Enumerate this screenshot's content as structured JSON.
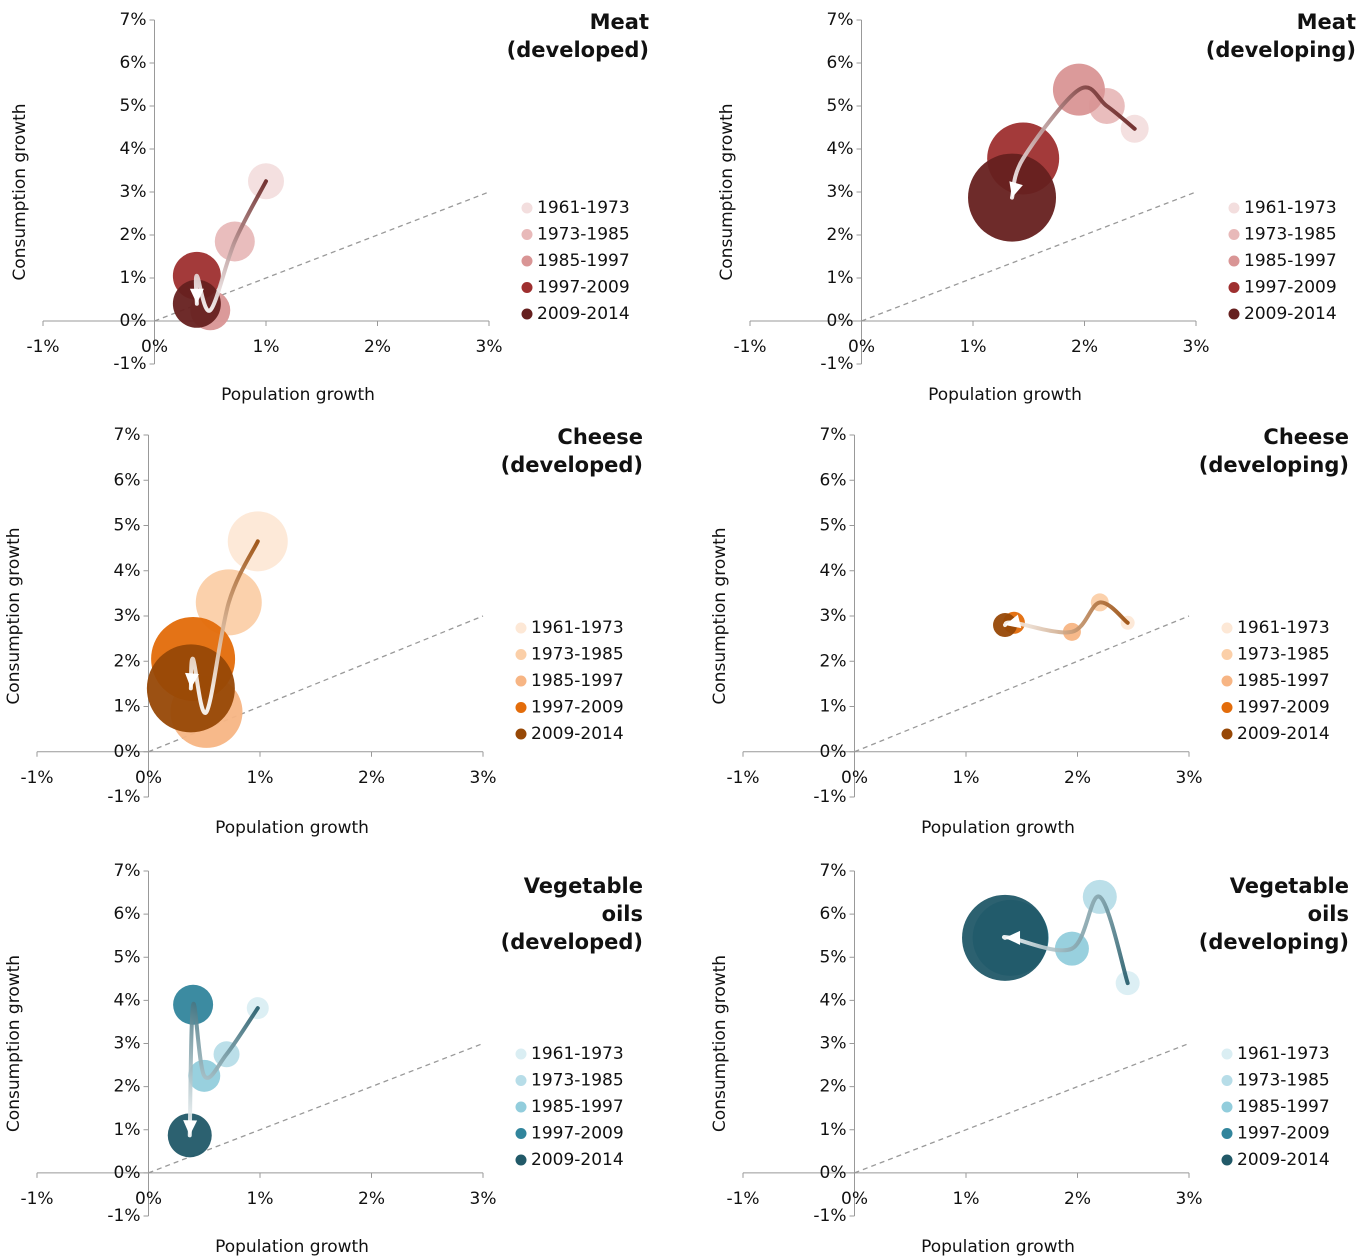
{
  "chart_data": [
    {
      "type": "bubble",
      "title": [
        "Meat",
        "(developed)"
      ],
      "xlabel": "Population growth",
      "ylabel": "Consumption growth",
      "xlim": [
        -1,
        3
      ],
      "ylim": [
        -1,
        7
      ],
      "xticks": [
        {
          "value": -1,
          "label": "-1%"
        },
        {
          "value": 0,
          "label": "0%"
        },
        {
          "value": 1,
          "label": "1%"
        },
        {
          "value": 2,
          "label": "2%"
        },
        {
          "value": 3,
          "label": "3%"
        }
      ],
      "yticks": [
        {
          "value": -1,
          "label": "-1%"
        },
        {
          "value": 0,
          "label": "0%"
        },
        {
          "value": 1,
          "label": "1%"
        },
        {
          "value": 2,
          "label": "2%"
        },
        {
          "value": 3,
          "label": "3%"
        },
        {
          "value": 4,
          "label": "4%"
        },
        {
          "value": 5,
          "label": "5%"
        },
        {
          "value": 6,
          "label": "6%"
        },
        {
          "value": 7,
          "label": "7%"
        }
      ],
      "series": [
        {
          "name": "1961-1973",
          "color": "#f3dede",
          "x": [
            1.0
          ],
          "values": [
            3.25
          ],
          "sizes": [
            18
          ]
        },
        {
          "name": "1973-1985",
          "color": "#e8b9b9",
          "x": [
            0.72
          ],
          "values": [
            1.85
          ],
          "sizes": [
            20
          ]
        },
        {
          "name": "1985-1997",
          "color": "#d99595",
          "x": [
            0.5
          ],
          "values": [
            0.25
          ],
          "sizes": [
            20
          ]
        },
        {
          "name": "1997-2009",
          "color": "#9e2f2f",
          "x": [
            0.38
          ],
          "values": [
            1.05
          ],
          "sizes": [
            24
          ]
        },
        {
          "name": "2009-2014",
          "color": "#66201f",
          "x": [
            0.38
          ],
          "values": [
            0.4
          ],
          "sizes": [
            24
          ]
        }
      ]
    },
    {
      "type": "bubble",
      "title": [
        "Meat",
        "(developing)"
      ],
      "xlabel": "Population growth",
      "ylabel": "Consumption growth",
      "xlim": [
        -1,
        3
      ],
      "ylim": [
        -1,
        7
      ],
      "xticks": [
        {
          "value": -1,
          "label": "-1%"
        },
        {
          "value": 0,
          "label": "0%"
        },
        {
          "value": 1,
          "label": "1%"
        },
        {
          "value": 2,
          "label": "2%"
        },
        {
          "value": 3,
          "label": "3%"
        }
      ],
      "yticks": [
        {
          "value": -1,
          "label": "-1%"
        },
        {
          "value": 0,
          "label": "0%"
        },
        {
          "value": 1,
          "label": "1%"
        },
        {
          "value": 2,
          "label": "2%"
        },
        {
          "value": 3,
          "label": "3%"
        },
        {
          "value": 4,
          "label": "4%"
        },
        {
          "value": 5,
          "label": "5%"
        },
        {
          "value": 6,
          "label": "6%"
        },
        {
          "value": 7,
          "label": "7%"
        }
      ],
      "series": [
        {
          "name": "1961-1973",
          "color": "#f3dede",
          "x": [
            2.45
          ],
          "values": [
            4.47
          ],
          "sizes": [
            14
          ]
        },
        {
          "name": "1973-1985",
          "color": "#e8b9b9",
          "x": [
            2.2
          ],
          "values": [
            5.0
          ],
          "sizes": [
            18
          ]
        },
        {
          "name": "1985-1997",
          "color": "#d99595",
          "x": [
            1.95
          ],
          "values": [
            5.38
          ],
          "sizes": [
            26
          ]
        },
        {
          "name": "1997-2009",
          "color": "#9e2f2f",
          "x": [
            1.45
          ],
          "values": [
            3.78
          ],
          "sizes": [
            36
          ]
        },
        {
          "name": "2009-2014",
          "color": "#66201f",
          "x": [
            1.35
          ],
          "values": [
            2.87
          ],
          "sizes": [
            44
          ]
        }
      ]
    },
    {
      "type": "bubble",
      "title": [
        "Cheese",
        "(developed)"
      ],
      "xlabel": "Population growth",
      "ylabel": "Consumption growth",
      "xlim": [
        -1,
        3
      ],
      "ylim": [
        -1,
        7
      ],
      "xticks": [
        {
          "value": -1,
          "label": "-1%"
        },
        {
          "value": 0,
          "label": "0%"
        },
        {
          "value": 1,
          "label": "1%"
        },
        {
          "value": 2,
          "label": "2%"
        },
        {
          "value": 3,
          "label": "3%"
        }
      ],
      "yticks": [
        {
          "value": -1,
          "label": "-1%"
        },
        {
          "value": 0,
          "label": "0%"
        },
        {
          "value": 1,
          "label": "1%"
        },
        {
          "value": 2,
          "label": "2%"
        },
        {
          "value": 3,
          "label": "3%"
        },
        {
          "value": 4,
          "label": "4%"
        },
        {
          "value": 5,
          "label": "5%"
        },
        {
          "value": 6,
          "label": "6%"
        },
        {
          "value": 7,
          "label": "7%"
        }
      ],
      "series": [
        {
          "name": "1961-1973",
          "color": "#fde8d6",
          "x": [
            0.98
          ],
          "values": [
            4.65
          ],
          "sizes": [
            30
          ]
        },
        {
          "name": "1973-1985",
          "color": "#fbcfa8",
          "x": [
            0.72
          ],
          "values": [
            3.3
          ],
          "sizes": [
            33
          ]
        },
        {
          "name": "1985-1997",
          "color": "#f7b584",
          "x": [
            0.52
          ],
          "values": [
            0.88
          ],
          "sizes": [
            36
          ]
        },
        {
          "name": "1997-2009",
          "color": "#e36c0a",
          "x": [
            0.4
          ],
          "values": [
            2.05
          ],
          "sizes": [
            42
          ]
        },
        {
          "name": "2009-2014",
          "color": "#974806",
          "x": [
            0.38
          ],
          "values": [
            1.4
          ],
          "sizes": [
            44
          ]
        }
      ]
    },
    {
      "type": "bubble",
      "title": [
        "Cheese",
        "(developing)"
      ],
      "xlabel": "Population growth",
      "ylabel": "Consumption growth",
      "xlim": [
        -1,
        3
      ],
      "ylim": [
        -1,
        7
      ],
      "xticks": [
        {
          "value": -1,
          "label": "-1%"
        },
        {
          "value": 0,
          "label": "0%"
        },
        {
          "value": 1,
          "label": "1%"
        },
        {
          "value": 2,
          "label": "2%"
        },
        {
          "value": 3,
          "label": "3%"
        }
      ],
      "yticks": [
        {
          "value": -1,
          "label": "-1%"
        },
        {
          "value": 0,
          "label": "0%"
        },
        {
          "value": 1,
          "label": "1%"
        },
        {
          "value": 2,
          "label": "2%"
        },
        {
          "value": 3,
          "label": "3%"
        },
        {
          "value": 4,
          "label": "4%"
        },
        {
          "value": 5,
          "label": "5%"
        },
        {
          "value": 6,
          "label": "6%"
        },
        {
          "value": 7,
          "label": "7%"
        }
      ],
      "series": [
        {
          "name": "1961-1973",
          "color": "#fde8d6",
          "x": [
            2.45
          ],
          "values": [
            2.85
          ],
          "sizes": [
            7
          ]
        },
        {
          "name": "1973-1985",
          "color": "#fbcfa8",
          "x": [
            2.2
          ],
          "values": [
            3.3
          ],
          "sizes": [
            9
          ]
        },
        {
          "name": "1985-1997",
          "color": "#f7b584",
          "x": [
            1.95
          ],
          "values": [
            2.65
          ],
          "sizes": [
            9
          ]
        },
        {
          "name": "1997-2009",
          "color": "#e36c0a",
          "x": [
            1.43
          ],
          "values": [
            2.85
          ],
          "sizes": [
            11
          ]
        },
        {
          "name": "2009-2014",
          "color": "#974806",
          "x": [
            1.35
          ],
          "values": [
            2.8
          ],
          "sizes": [
            12
          ]
        }
      ]
    },
    {
      "type": "bubble",
      "title": [
        "Vegetable",
        "oils",
        "(developed)"
      ],
      "xlabel": "Population growth",
      "ylabel": "Consumption growth",
      "xlim": [
        -1,
        3
      ],
      "ylim": [
        -1,
        7
      ],
      "xticks": [
        {
          "value": -1,
          "label": "-1%"
        },
        {
          "value": 0,
          "label": "0%"
        },
        {
          "value": 1,
          "label": "1%"
        },
        {
          "value": 2,
          "label": "2%"
        },
        {
          "value": 3,
          "label": "3%"
        }
      ],
      "yticks": [
        {
          "value": -1,
          "label": "-1%"
        },
        {
          "value": 0,
          "label": "0%"
        },
        {
          "value": 1,
          "label": "1%"
        },
        {
          "value": 2,
          "label": "2%"
        },
        {
          "value": 3,
          "label": "3%"
        },
        {
          "value": 4,
          "label": "4%"
        },
        {
          "value": 5,
          "label": "5%"
        },
        {
          "value": 6,
          "label": "6%"
        },
        {
          "value": 7,
          "label": "7%"
        }
      ],
      "series": [
        {
          "name": "1961-1973",
          "color": "#daeef3",
          "x": [
            0.98
          ],
          "values": [
            3.82
          ],
          "sizes": [
            11
          ]
        },
        {
          "name": "1973-1985",
          "color": "#b7dde8",
          "x": [
            0.7
          ],
          "values": [
            2.75
          ],
          "sizes": [
            13
          ]
        },
        {
          "name": "1985-1997",
          "color": "#92cddc",
          "x": [
            0.5
          ],
          "values": [
            2.25
          ],
          "sizes": [
            16
          ]
        },
        {
          "name": "1997-2009",
          "color": "#31859c",
          "x": [
            0.4
          ],
          "values": [
            3.9
          ],
          "sizes": [
            20
          ]
        },
        {
          "name": "2009-2014",
          "color": "#215968",
          "x": [
            0.37
          ],
          "values": [
            0.87
          ],
          "sizes": [
            22
          ]
        }
      ]
    },
    {
      "type": "bubble",
      "title": [
        "Vegetable",
        "oils",
        "(developing)"
      ],
      "xlabel": "Population growth",
      "ylabel": "Consumption growth",
      "xlim": [
        -1,
        3
      ],
      "ylim": [
        -1,
        7
      ],
      "xticks": [
        {
          "value": -1,
          "label": "-1%"
        },
        {
          "value": 0,
          "label": "0%"
        },
        {
          "value": 1,
          "label": "1%"
        },
        {
          "value": 2,
          "label": "2%"
        },
        {
          "value": 3,
          "label": "3%"
        }
      ],
      "yticks": [
        {
          "value": -1,
          "label": "-1%"
        },
        {
          "value": 0,
          "label": "0%"
        },
        {
          "value": 1,
          "label": "1%"
        },
        {
          "value": 2,
          "label": "2%"
        },
        {
          "value": 3,
          "label": "3%"
        },
        {
          "value": 4,
          "label": "4%"
        },
        {
          "value": 5,
          "label": "5%"
        },
        {
          "value": 6,
          "label": "6%"
        },
        {
          "value": 7,
          "label": "7%"
        }
      ],
      "series": [
        {
          "name": "1961-1973",
          "color": "#daeef3",
          "x": [
            2.45
          ],
          "values": [
            4.4
          ],
          "sizes": [
            12
          ]
        },
        {
          "name": "1973-1985",
          "color": "#b7dde8",
          "x": [
            2.2
          ],
          "values": [
            6.4
          ],
          "sizes": [
            17
          ]
        },
        {
          "name": "1985-1997",
          "color": "#92cddc",
          "x": [
            1.95
          ],
          "values": [
            5.2
          ],
          "sizes": [
            17
          ]
        },
        {
          "name": "1997-2009",
          "color": "#31859c",
          "x": [
            1.4
          ],
          "values": [
            5.45
          ],
          "sizes": [
            38
          ]
        },
        {
          "name": "2009-2014",
          "color": "#215968",
          "x": [
            1.35
          ],
          "values": [
            5.45
          ],
          "sizes": [
            43
          ]
        }
      ]
    }
  ]
}
